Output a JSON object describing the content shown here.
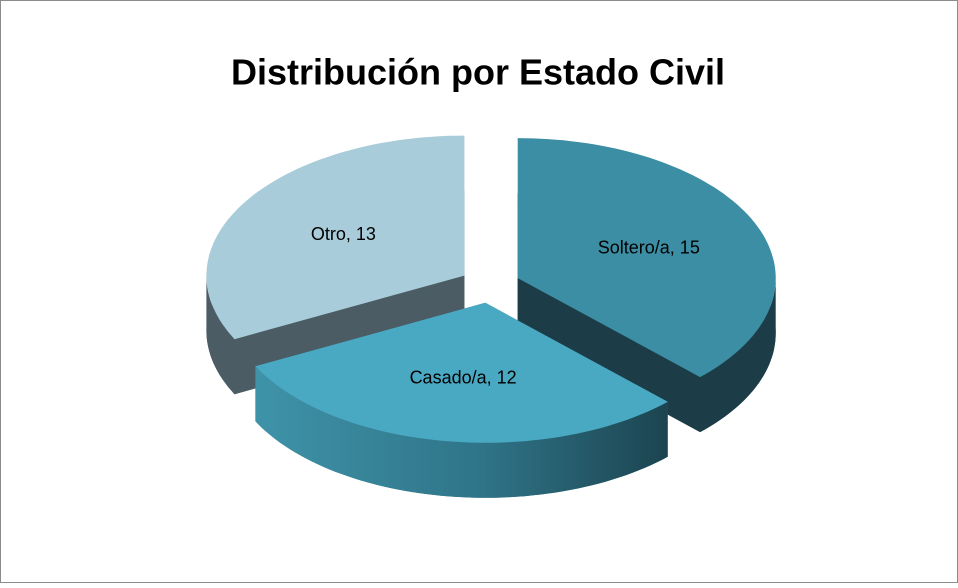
{
  "chart_data": {
    "type": "pie3d",
    "title": "Distribución por Estado Civil",
    "categories": [
      "Soltero/a",
      "Casado/a",
      "Otro"
    ],
    "values": [
      15,
      12,
      13
    ],
    "value_labels": [
      "Soltero/a, 15",
      "Casado/a, 12",
      "Otro, 13"
    ],
    "colors": [
      "#3b8ea3",
      "#4aa9c2",
      "#a8ccd9"
    ],
    "side_colors": [
      "#1c3d48",
      "#2f7386",
      "#4b5c64"
    ]
  }
}
